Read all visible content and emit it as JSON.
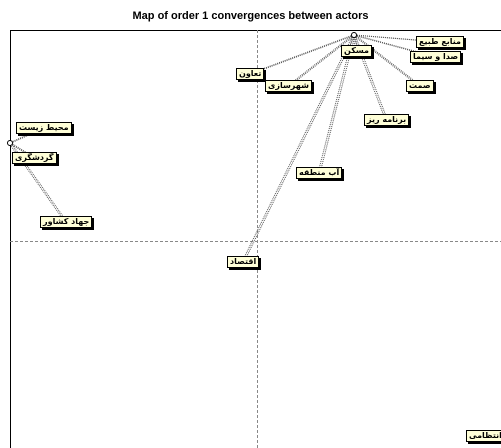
{
  "title": "Map of order 1 convergences between actors",
  "nodes": [
    {
      "label": "منابع طبیع"
    },
    {
      "label": "صدا و سیما"
    },
    {
      "label": "مسکن"
    },
    {
      "label": "تعاون"
    },
    {
      "label": "شهرسازی"
    },
    {
      "label": "صمت"
    },
    {
      "label": "برنامه ریز"
    },
    {
      "label": "آب منطقه"
    },
    {
      "label": "اقتصاد"
    },
    {
      "label": "محیط زیست"
    },
    {
      "label": "گردشگری"
    },
    {
      "label": "جهاد کشاور"
    },
    {
      "label": "انتظامی"
    }
  ]
}
